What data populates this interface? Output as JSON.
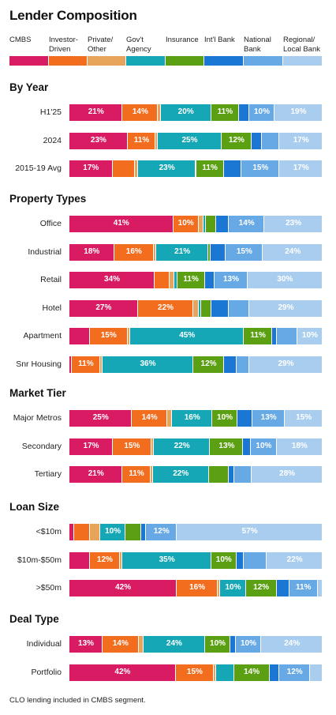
{
  "title": "Lender Composition",
  "footnote": "CLO lending included in CMBS segment.",
  "chart_data": {
    "type": "bar",
    "stacked": true,
    "orientation": "horizontal",
    "normalized": true,
    "series": [
      {
        "name": "CMBS",
        "color": "#d81b63"
      },
      {
        "name": "Investor-\nDriven",
        "color": "#f36d1e"
      },
      {
        "name": "Private/\nOther",
        "color": "#e6a55a"
      },
      {
        "name": "Gov't\nAgency",
        "color": "#15a7b5"
      },
      {
        "name": "Insurance",
        "color": "#5aa012"
      },
      {
        "name": "Int'l Bank",
        "color": "#1a78d4"
      },
      {
        "name": "National\nBank",
        "color": "#66a9e5"
      },
      {
        "name": "Regional/\nLocal Bank",
        "color": "#a9cdef"
      }
    ],
    "sections": [
      {
        "title": "By Year",
        "rows": [
          {
            "label": "H1'25",
            "values": [
              21,
              14,
              1,
              20,
              11,
              4,
              10,
              19
            ]
          },
          {
            "label": "2024",
            "values": [
              23,
              11,
              1,
              25,
              12,
              4,
              7,
              17
            ]
          },
          {
            "label": "2015-19 Avg",
            "values": [
              17,
              9,
              1,
              23,
              11,
              7,
              15,
              17
            ]
          }
        ]
      },
      {
        "title": "Property Types",
        "rows": [
          {
            "label": "Office",
            "values": [
              41,
              10,
              2,
              1,
              4,
              5,
              14,
              23
            ]
          },
          {
            "label": "Industrial",
            "values": [
              18,
              16,
              1,
              21,
              1,
              6,
              15,
              24
            ]
          },
          {
            "label": "Retail",
            "values": [
              34,
              6,
              2,
              1,
              11,
              4,
              13,
              30
            ]
          },
          {
            "label": "Hotel",
            "values": [
              27,
              22,
              2,
              1,
              4,
              7,
              8,
              29
            ]
          },
          {
            "label": "Apartment",
            "values": [
              8,
              15,
              1,
              45,
              11,
              2,
              8,
              10
            ]
          },
          {
            "label": "Snr Housing",
            "values": [
              1,
              11,
              1,
              36,
              12,
              5,
              5,
              29
            ]
          }
        ]
      },
      {
        "title": "Market Tier",
        "rows": [
          {
            "label": "Major Metros",
            "values": [
              25,
              14,
              2,
              16,
              10,
              6,
              13,
              15
            ]
          },
          {
            "label": "Secondary",
            "values": [
              17,
              15,
              1,
              22,
              13,
              3,
              10,
              18
            ]
          },
          {
            "label": "Tertiary",
            "values": [
              21,
              11,
              1,
              22,
              8,
              2,
              7,
              28
            ]
          }
        ]
      },
      {
        "title": "Loan Size",
        "rows": [
          {
            "label": "<$10m",
            "values": [
              2,
              6,
              4,
              10,
              6,
              2,
              12,
              57
            ]
          },
          {
            "label": "$10m-$50m",
            "values": [
              8,
              12,
              1,
              35,
              10,
              3,
              9,
              22
            ]
          },
          {
            "label": ">$50m",
            "values": [
              42,
              16,
              1,
              10,
              12,
              5,
              11,
              2
            ]
          }
        ]
      },
      {
        "title": "Deal Type",
        "rows": [
          {
            "label": "Individual",
            "values": [
              13,
              14,
              2,
              24,
              10,
              2,
              10,
              24
            ]
          },
          {
            "label": "Portfolio",
            "values": [
              42,
              15,
              1,
              7,
              14,
              4,
              12,
              5
            ]
          }
        ]
      }
    ]
  }
}
